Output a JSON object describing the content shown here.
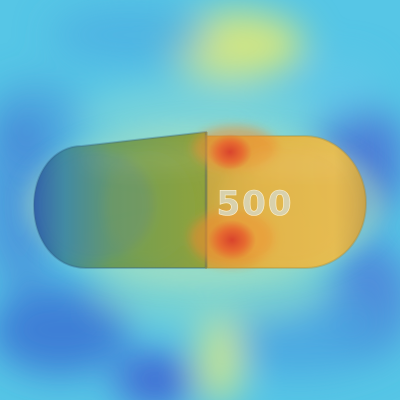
{
  "image": {
    "subject": "capsule",
    "overlay": "heatmap",
    "imprint_text": "500",
    "colors": {
      "background_cyan": "#56c6e6",
      "background_blue": "#3f7fd8",
      "background_yellow": "#d6e77e",
      "capsule_left": "#5a9a78",
      "capsule_right": "#e1b445",
      "hotspot_red": "#d9432c",
      "hotspot_orange": "#ef8a2e",
      "capsule_outline": "#2d5f87"
    }
  }
}
